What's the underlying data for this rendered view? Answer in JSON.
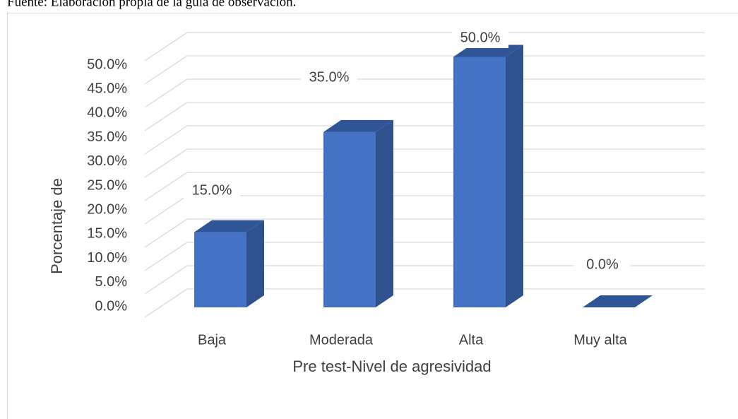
{
  "note": "Fuente: Elaboración propia de la guía de observación.",
  "chart_data": {
    "type": "bar3d",
    "x_label": "Pre test-Nivel de agresividad",
    "y_label": "Porcentaje de",
    "categories": [
      "Baja",
      "Moderada",
      "Alta",
      "Muy alta"
    ],
    "values": [
      15,
      35,
      50,
      0
    ],
    "value_labels": [
      "15.0%",
      "35.0%",
      "50.0%",
      "0.0%"
    ],
    "color": "#4472c4",
    "ylim": [
      0,
      55
    ],
    "yticks": [
      {
        "value": 0,
        "label": "0.0%"
      },
      {
        "value": 5,
        "label": "5.0%"
      },
      {
        "value": 10,
        "label": "10.0%"
      },
      {
        "value": 15,
        "label": "15.0%"
      },
      {
        "value": 20,
        "label": "20.0%"
      },
      {
        "value": 25,
        "label": "25.0%"
      },
      {
        "value": 30,
        "label": "30.0%"
      },
      {
        "value": 35,
        "label": "35.0%"
      },
      {
        "value": 40,
        "label": "40.0%"
      },
      {
        "value": 45,
        "label": "45.0%"
      },
      {
        "value": 50,
        "label": "50.0%"
      }
    ],
    "grid": true
  }
}
